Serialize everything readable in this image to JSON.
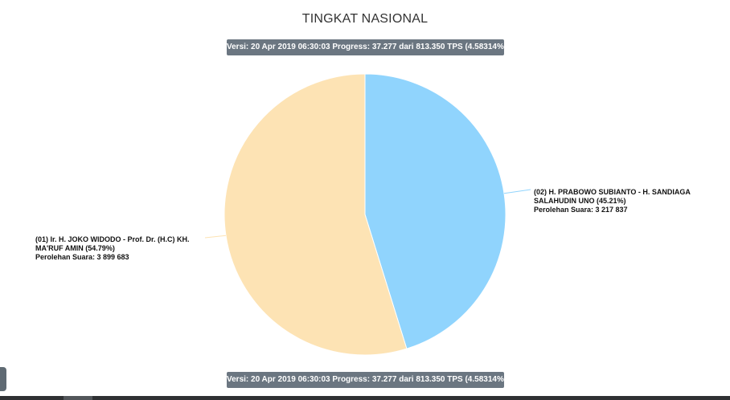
{
  "chart_data": {
    "type": "pie",
    "title": "TINGKAT NASIONAL",
    "version_note": "Versi: 20 Apr 2019 06:30:03 Progress: 37.277 dari 813.350 TPS (4.58314%)",
    "slices": [
      {
        "id": "02",
        "name": "(02) H. PRABOWO SUBIANTO - H. SANDIAGA SALAHUDIN UNO (45.21%)",
        "name_line1": "(02) H. PRABOWO SUBIANTO - H. SANDIAGA",
        "name_line2": "SALAHUDIN UNO (45.21%)",
        "votes_label": "Perolehan Suara: 3 217 837",
        "value": 3217837,
        "percent": 45.21,
        "color": "#90d4fd"
      },
      {
        "id": "01",
        "name": "(01) Ir. H. JOKO WIDODO - Prof. Dr. (H.C) KH. MA'RUF AMIN (54.79%)",
        "name_line1": "(01) Ir. H. JOKO WIDODO - Prof. Dr. (H.C) KH.",
        "name_line2": "MA'RUF AMIN (54.79%)",
        "votes_label": "Perolehan Suara: 3 899 683",
        "value": 3899683,
        "percent": 54.79,
        "color": "#fde3b4"
      }
    ]
  }
}
